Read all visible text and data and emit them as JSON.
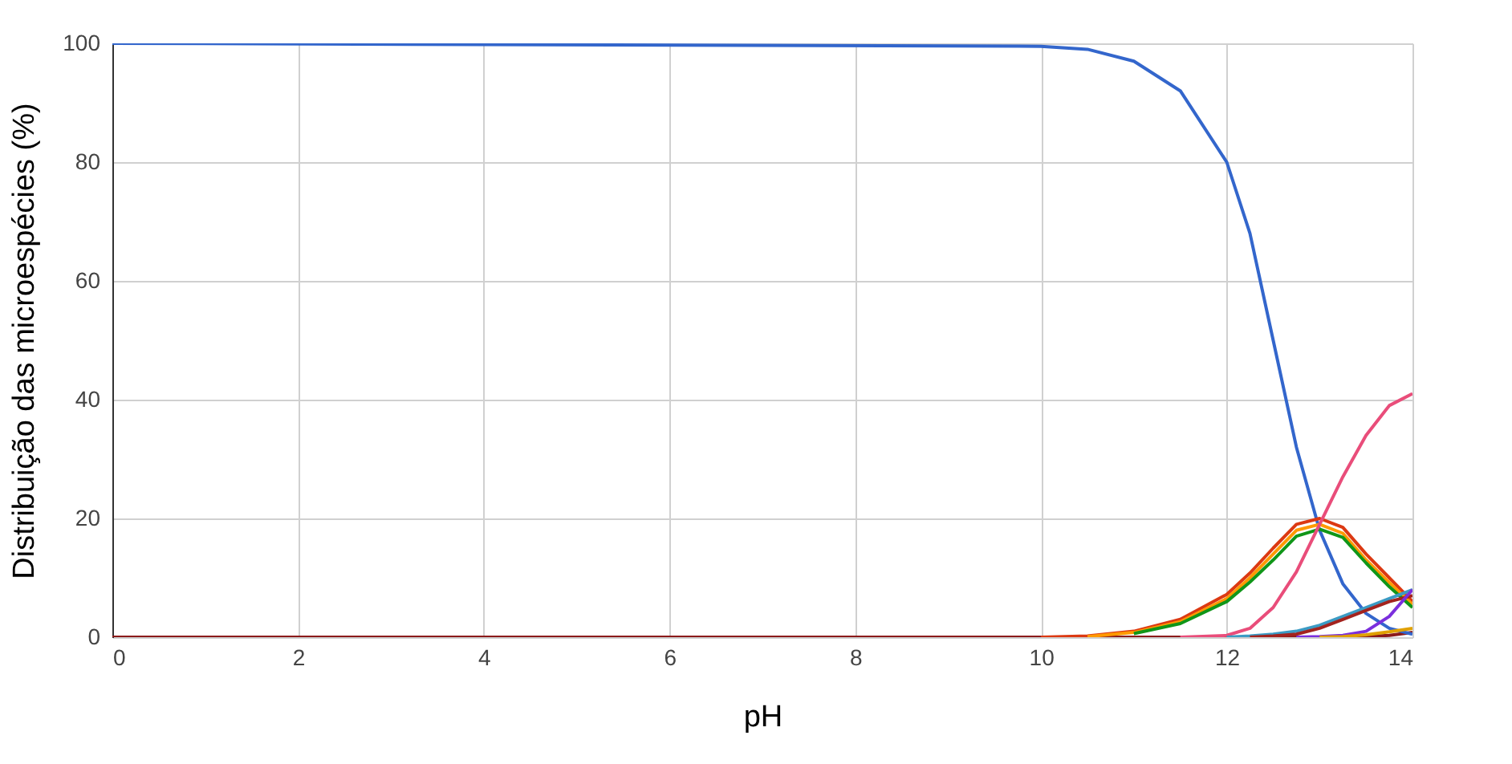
{
  "chart_data": {
    "type": "line",
    "xlabel": "pH",
    "ylabel": "Distribuição das microespécies  (%)",
    "xlim": [
      0,
      14
    ],
    "ylim": [
      0,
      100
    ],
    "xticks": [
      0,
      2,
      4,
      6,
      8,
      10,
      12,
      14
    ],
    "yticks": [
      0,
      20,
      40,
      60,
      80,
      100
    ],
    "grid": true,
    "legend": false,
    "marker": "none",
    "line_style": "solid",
    "x": [
      0,
      10,
      10.5,
      11,
      11.5,
      12,
      12.25,
      12.5,
      12.75,
      13,
      13.25,
      13.5,
      13.75,
      14
    ],
    "series": [
      {
        "color": "#8b1a1a",
        "values": [
          0,
          0,
          0,
          0,
          0,
          0,
          0,
          0,
          0,
          0,
          0,
          0.1,
          0.3,
          0.8
        ]
      },
      {
        "color": "#3366cc",
        "values": [
          100,
          99.5,
          99,
          97,
          92,
          80,
          68,
          50,
          32,
          18,
          9,
          4,
          1.5,
          0.5
        ]
      },
      {
        "color": "#dc3912",
        "values": [
          null,
          0,
          0.2,
          1,
          3,
          7.2,
          10.8,
          15,
          19,
          20,
          18.5,
          14,
          10,
          6
        ]
      },
      {
        "color": "#ff9900",
        "values": [
          null,
          null,
          0.1,
          0.8,
          2.6,
          6.5,
          10,
          14,
          18,
          19,
          17.5,
          13,
          9.2,
          5.5
        ]
      },
      {
        "color": "#109618",
        "values": [
          null,
          null,
          null,
          0.6,
          2.3,
          6,
          9.3,
          13,
          17,
          18.2,
          16.8,
          12.5,
          8.5,
          5
        ]
      },
      {
        "color": "#e94d7a",
        "values": [
          null,
          null,
          null,
          null,
          0,
          0.3,
          1.5,
          5,
          11,
          19,
          27,
          34,
          39,
          41
        ]
      },
      {
        "color": "#3b9bc4",
        "values": [
          null,
          null,
          null,
          null,
          null,
          0,
          0.2,
          0.5,
          1,
          2,
          3.5,
          5,
          6.5,
          8
        ]
      },
      {
        "color": "#a3231e",
        "values": [
          null,
          null,
          null,
          null,
          null,
          null,
          0,
          0.2,
          0.5,
          1.5,
          3,
          4.5,
          6,
          7
        ]
      },
      {
        "color": "#7b2fdd",
        "values": [
          null,
          null,
          null,
          null,
          null,
          null,
          null,
          null,
          0,
          0.1,
          0.3,
          1,
          3.5,
          8
        ]
      },
      {
        "color": "#e0a000",
        "values": [
          null,
          null,
          null,
          null,
          null,
          null,
          null,
          null,
          null,
          0,
          0.1,
          0.4,
          0.9,
          1.5
        ]
      }
    ]
  }
}
